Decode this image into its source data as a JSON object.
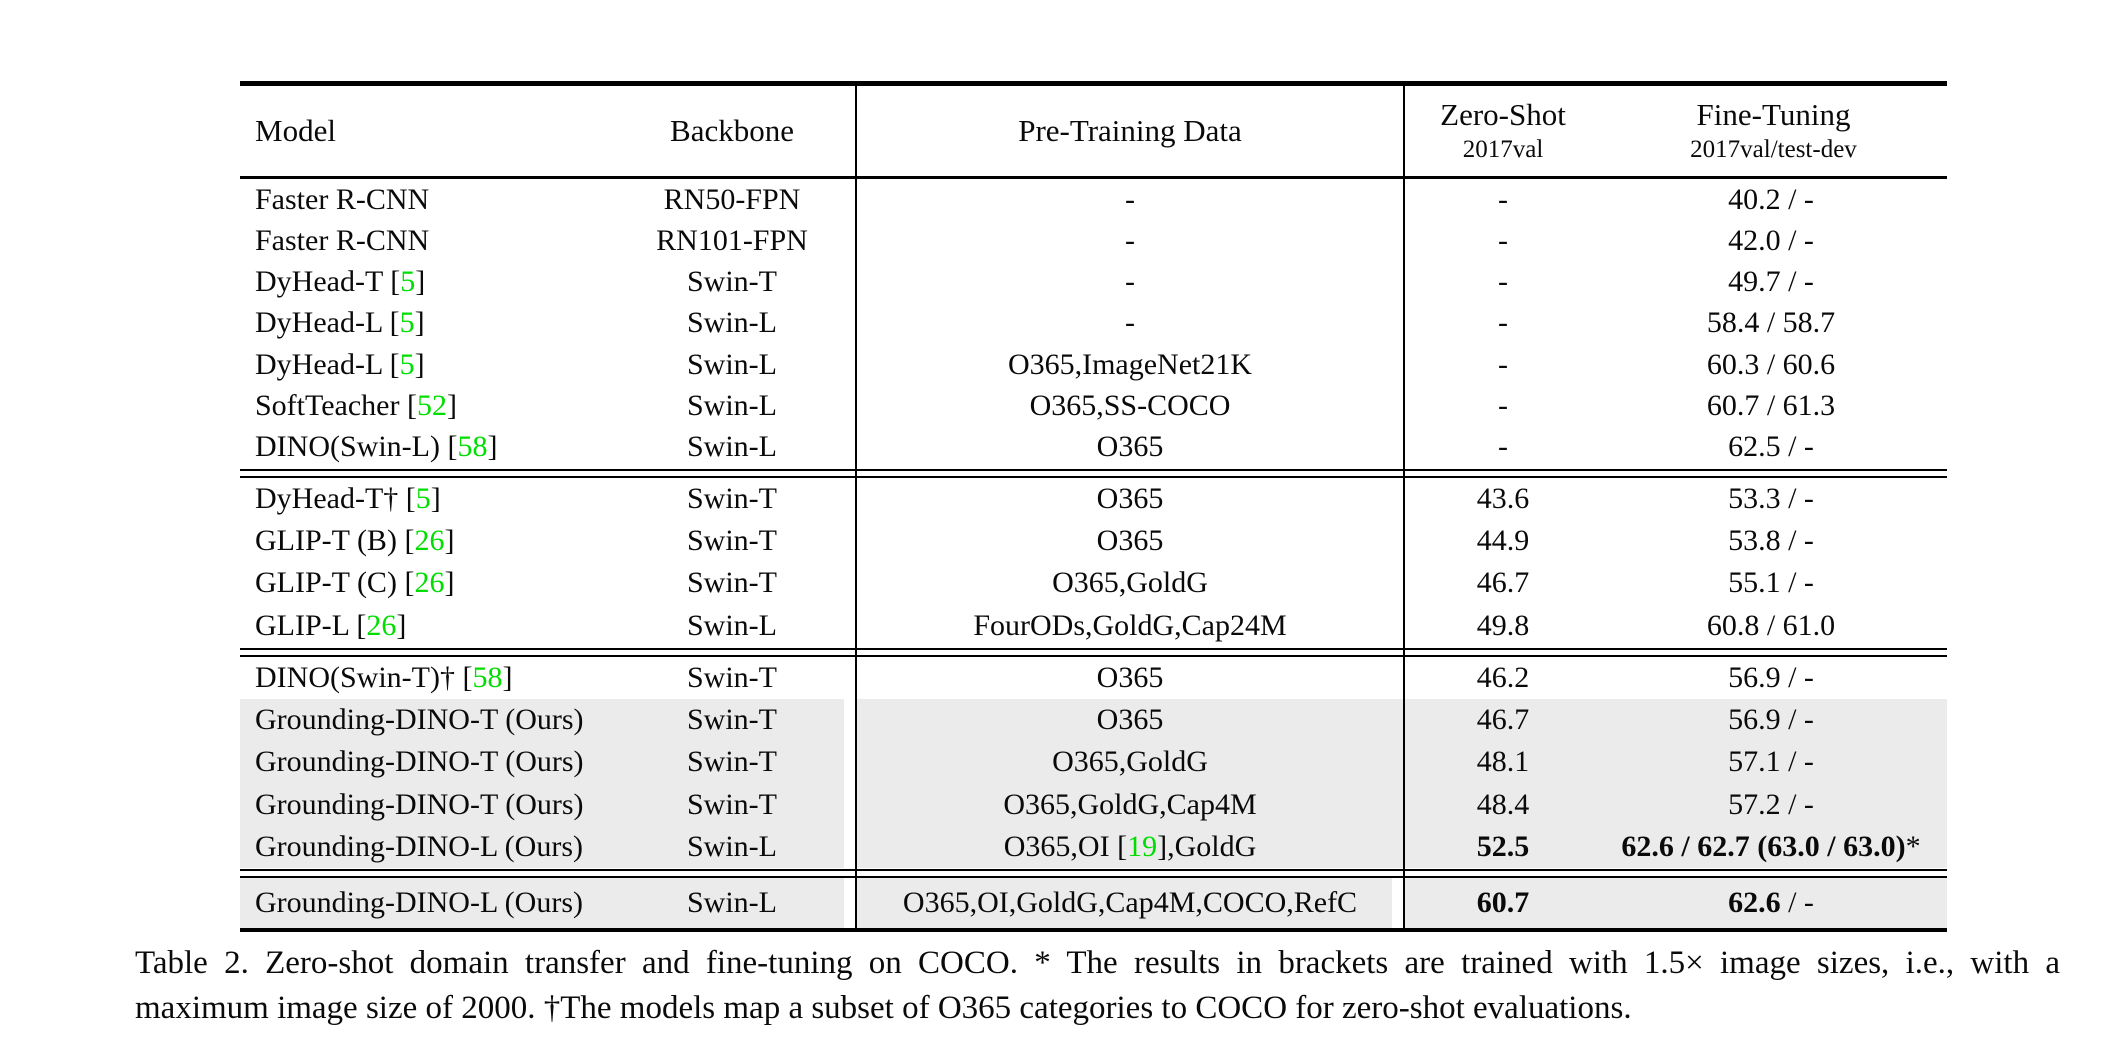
{
  "colors": {
    "citation_green": "#00DD00",
    "row_highlight": "#EBEBEB",
    "rule_black": "#000000",
    "text_black": "#0A0A0A"
  },
  "table_header": {
    "model": "Model",
    "backbone": "Backbone",
    "pretrain": "Pre-Training Data",
    "zeroshot_title": "Zero-Shot",
    "zeroshot_sub": "2017val",
    "finetune_title": "Fine-Tuning",
    "finetune_sub": "2017val/test-dev"
  },
  "table_groups": [
    {
      "rows": [
        {
          "model": [
            {
              "t": "Faster R-CNN"
            }
          ],
          "backbone": "RN50-FPN",
          "pretrain": "-",
          "zs": "-",
          "ft": "40.2 / -"
        },
        {
          "model": [
            {
              "t": "Faster R-CNN"
            }
          ],
          "backbone": "RN101-FPN",
          "pretrain": "-",
          "zs": "-",
          "ft": "42.0 / -"
        },
        {
          "model": [
            {
              "t": "DyHead-T "
            },
            {
              "cite": "5"
            }
          ],
          "backbone": "Swin-T",
          "pretrain": "-",
          "zs": "-",
          "ft": "49.7 / -"
        },
        {
          "model": [
            {
              "t": "DyHead-L "
            },
            {
              "cite": "5"
            }
          ],
          "backbone": "Swin-L",
          "pretrain": "-",
          "zs": "-",
          "ft": "58.4 / 58.7"
        },
        {
          "model": [
            {
              "t": "DyHead-L "
            },
            {
              "cite": "5"
            }
          ],
          "backbone": "Swin-L",
          "pretrain": "O365,ImageNet21K",
          "zs": "-",
          "ft": "60.3 / 60.6"
        },
        {
          "model": [
            {
              "t": "SoftTeacher "
            },
            {
              "cite": "52"
            }
          ],
          "backbone": "Swin-L",
          "pretrain": "O365,SS-COCO",
          "zs": "-",
          "ft": "60.7 / 61.3"
        },
        {
          "model": [
            {
              "t": "DINO(Swin-L) "
            },
            {
              "cite": "58"
            }
          ],
          "backbone": "Swin-L",
          "pretrain": "O365",
          "zs": "-",
          "ft": "62.5 / -"
        }
      ]
    },
    {
      "rows": [
        {
          "model": [
            {
              "t": "DyHead-T† "
            },
            {
              "cite": "5"
            }
          ],
          "backbone": "Swin-T",
          "pretrain": "O365",
          "zs": "43.6",
          "ft": "53.3 / -"
        },
        {
          "model": [
            {
              "t": "GLIP-T (B) "
            },
            {
              "cite": "26"
            }
          ],
          "backbone": "Swin-T",
          "pretrain": "O365",
          "zs": "44.9",
          "ft": "53.8 / -"
        },
        {
          "model": [
            {
              "t": "GLIP-T (C) "
            },
            {
              "cite": "26"
            }
          ],
          "backbone": "Swin-T",
          "pretrain": "O365,GoldG",
          "zs": "46.7",
          "ft": "55.1 / -"
        },
        {
          "model": [
            {
              "t": "GLIP-L "
            },
            {
              "cite": "26"
            }
          ],
          "backbone": "Swin-L",
          "pretrain": "FourODs,GoldG,Cap24M",
          "zs": "49.8",
          "ft": "60.8 / 61.0"
        }
      ]
    },
    {
      "rows": [
        {
          "model": [
            {
              "t": "DINO(Swin-T)† "
            },
            {
              "cite": "58"
            }
          ],
          "backbone": "Swin-T",
          "pretrain": "O365",
          "zs": "46.2",
          "ft": "56.9 / -"
        },
        {
          "model": [
            {
              "t": "Grounding-DINO-T (Ours)"
            }
          ],
          "backbone": "Swin-T",
          "pretrain": "O365",
          "zs": "46.7",
          "ft": "56.9 / -",
          "hl": true
        },
        {
          "model": [
            {
              "t": "Grounding-DINO-T (Ours)"
            }
          ],
          "backbone": "Swin-T",
          "pretrain": "O365,GoldG",
          "zs": "48.1",
          "ft": "57.1 / -",
          "hl": true
        },
        {
          "model": [
            {
              "t": "Grounding-DINO-T (Ours)"
            }
          ],
          "backbone": "Swin-T",
          "pretrain": "O365,GoldG,Cap4M",
          "zs": "48.4",
          "ft": "57.2 / -",
          "hl": true
        },
        {
          "model": [
            {
              "t": "Grounding-DINO-L (Ours)"
            }
          ],
          "backbone": "Swin-L",
          "pretrain": [
            {
              "t": "O365,OI "
            },
            {
              "cite": "19"
            },
            {
              "t": ",GoldG"
            }
          ],
          "zs": [
            {
              "t": "52.5",
              "b": true
            }
          ],
          "ft": [
            {
              "t": "62.6 / 62.7 (63.0 / 63.0)",
              "b": true
            },
            {
              "t": "*"
            }
          ],
          "hl": true
        }
      ]
    },
    {
      "rows": [
        {
          "model": [
            {
              "t": "Grounding-DINO-L (Ours)"
            }
          ],
          "backbone": "Swin-L",
          "pretrain": "O365,OI,GoldG,Cap4M,COCO,RefC",
          "zs": [
            {
              "t": "60.7",
              "b": true
            }
          ],
          "ft": [
            {
              "t": "62.6",
              "b": true
            },
            {
              "t": " / -"
            }
          ],
          "hl": true,
          "gap2": true
        }
      ]
    }
  ],
  "caption": {
    "line1": "Table 2.  Zero-shot domain transfer and fine-tuning on COCO. * The results in brackets are trained with 1.5× image sizes, i.e., with a",
    "line2": "maximum image size of 2000. †The models map a subset of O365 categories to COCO for zero-shot evaluations."
  }
}
